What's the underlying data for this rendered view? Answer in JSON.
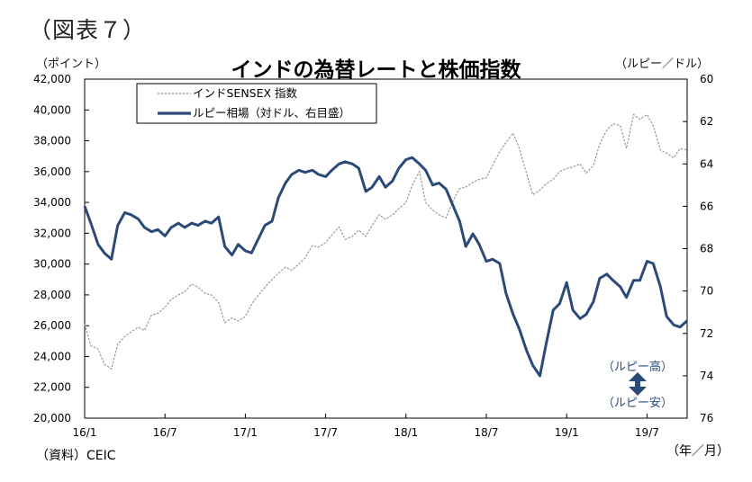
{
  "header": {
    "figure_label": "（図表７）",
    "title": "インドの為替レートと株価指数",
    "left_unit": "（ポイント）",
    "right_unit": "（ルピー／ドル）"
  },
  "footer": {
    "source": "（資料）CEIC",
    "period_unit": "（年／月）"
  },
  "chart_data": {
    "type": "line",
    "title": "インドの為替レートと株価指数",
    "x_ticks": [
      "16/1",
      "16/7",
      "17/1",
      "17/7",
      "18/1",
      "18/7",
      "19/1",
      "19/7"
    ],
    "xlim": [
      "2016-01",
      "2019-10"
    ],
    "y_left": {
      "label": "（ポイント）",
      "lim": [
        20000,
        42000
      ],
      "ticks": [
        "20,000",
        "22,000",
        "24,000",
        "26,000",
        "28,000",
        "30,000",
        "32,000",
        "34,000",
        "36,000",
        "38,000",
        "40,000",
        "42,000"
      ]
    },
    "y_right": {
      "label": "（ルピー／ドル）",
      "lim": [
        60,
        76
      ],
      "inverted": true,
      "ticks": [
        "60",
        "62",
        "64",
        "66",
        "68",
        "70",
        "72",
        "74",
        "76"
      ]
    },
    "grid": false,
    "legend_position": "top-left",
    "colors": {
      "rupee": "#2b4a78",
      "sensex": "#999999",
      "arrow": "#2b4a78",
      "annotation": "#2b4a78"
    },
    "series": [
      {
        "name": "インドSENSEX 指数",
        "axis": "left",
        "style": "dashed",
        "points": [
          [
            "2016-01-01",
            26100
          ],
          [
            "2016-01-15",
            24700
          ],
          [
            "2016-02-01",
            24500
          ],
          [
            "2016-02-15",
            23500
          ],
          [
            "2016-03-01",
            23200
          ],
          [
            "2016-03-15",
            24800
          ],
          [
            "2016-04-01",
            25300
          ],
          [
            "2016-04-15",
            25600
          ],
          [
            "2016-05-01",
            25900
          ],
          [
            "2016-05-15",
            25700
          ],
          [
            "2016-06-01",
            26700
          ],
          [
            "2016-06-15",
            26800
          ],
          [
            "2016-07-01",
            27200
          ],
          [
            "2016-07-15",
            27700
          ],
          [
            "2016-08-01",
            28000
          ],
          [
            "2016-08-15",
            28200
          ],
          [
            "2016-09-01",
            28700
          ],
          [
            "2016-09-15",
            28500
          ],
          [
            "2016-10-01",
            28100
          ],
          [
            "2016-10-15",
            28000
          ],
          [
            "2016-11-01",
            27500
          ],
          [
            "2016-11-15",
            26200
          ],
          [
            "2016-12-01",
            26500
          ],
          [
            "2016-12-15",
            26300
          ],
          [
            "2017-01-01",
            26600
          ],
          [
            "2017-01-15",
            27400
          ],
          [
            "2017-02-01",
            28000
          ],
          [
            "2017-02-15",
            28500
          ],
          [
            "2017-03-01",
            29000
          ],
          [
            "2017-03-15",
            29400
          ],
          [
            "2017-04-01",
            29800
          ],
          [
            "2017-04-15",
            29600
          ],
          [
            "2017-05-01",
            30000
          ],
          [
            "2017-05-15",
            30400
          ],
          [
            "2017-06-01",
            31200
          ],
          [
            "2017-06-15",
            31100
          ],
          [
            "2017-07-01",
            31400
          ],
          [
            "2017-07-15",
            31900
          ],
          [
            "2017-08-01",
            32400
          ],
          [
            "2017-08-15",
            31600
          ],
          [
            "2017-09-01",
            31800
          ],
          [
            "2017-09-15",
            32200
          ],
          [
            "2017-10-01",
            31800
          ],
          [
            "2017-10-15",
            32500
          ],
          [
            "2017-11-01",
            33200
          ],
          [
            "2017-11-15",
            32900
          ],
          [
            "2017-12-01",
            33200
          ],
          [
            "2017-12-15",
            33600
          ],
          [
            "2018-01-01",
            34000
          ],
          [
            "2018-01-15",
            35100
          ],
          [
            "2018-02-01",
            36000
          ],
          [
            "2018-02-15",
            34000
          ],
          [
            "2018-03-01",
            33500
          ],
          [
            "2018-03-15",
            33200
          ],
          [
            "2018-04-01",
            33000
          ],
          [
            "2018-04-15",
            34000
          ],
          [
            "2018-05-01",
            34900
          ],
          [
            "2018-05-15",
            35000
          ],
          [
            "2018-06-01",
            35300
          ],
          [
            "2018-06-15",
            35500
          ],
          [
            "2018-07-01",
            35600
          ],
          [
            "2018-07-15",
            36400
          ],
          [
            "2018-08-01",
            37300
          ],
          [
            "2018-08-15",
            37900
          ],
          [
            "2018-09-01",
            38500
          ],
          [
            "2018-09-15",
            37500
          ],
          [
            "2018-10-01",
            35900
          ],
          [
            "2018-10-15",
            34500
          ],
          [
            "2018-11-01",
            34800
          ],
          [
            "2018-11-15",
            35200
          ],
          [
            "2018-12-01",
            35500
          ],
          [
            "2018-12-15",
            36000
          ],
          [
            "2019-01-01",
            36200
          ],
          [
            "2019-01-15",
            36300
          ],
          [
            "2019-02-01",
            36500
          ],
          [
            "2019-02-15",
            35900
          ],
          [
            "2019-03-01",
            36400
          ],
          [
            "2019-03-15",
            37800
          ],
          [
            "2019-04-01",
            38700
          ],
          [
            "2019-04-15",
            39100
          ],
          [
            "2019-05-01",
            39000
          ],
          [
            "2019-05-15",
            37500
          ],
          [
            "2019-06-01",
            39700
          ],
          [
            "2019-06-15",
            39400
          ],
          [
            "2019-07-01",
            39700
          ],
          [
            "2019-07-15",
            39000
          ],
          [
            "2019-08-01",
            37400
          ],
          [
            "2019-08-15",
            37200
          ],
          [
            "2019-09-01",
            36900
          ],
          [
            "2019-09-15",
            37500
          ],
          [
            "2019-10-01",
            37400
          ]
        ]
      },
      {
        "name": "ルピー相場（対ドル、右目盛）",
        "axis": "right",
        "style": "solid",
        "points": [
          [
            "2016-01-01",
            66.0
          ],
          [
            "2016-01-15",
            66.8
          ],
          [
            "2016-02-01",
            67.8
          ],
          [
            "2016-02-15",
            68.2
          ],
          [
            "2016-03-01",
            68.5
          ],
          [
            "2016-03-15",
            66.9
          ],
          [
            "2016-04-01",
            66.3
          ],
          [
            "2016-04-15",
            66.4
          ],
          [
            "2016-05-01",
            66.6
          ],
          [
            "2016-05-15",
            67.0
          ],
          [
            "2016-06-01",
            67.2
          ],
          [
            "2016-06-15",
            67.1
          ],
          [
            "2016-07-01",
            67.4
          ],
          [
            "2016-07-15",
            67.0
          ],
          [
            "2016-08-01",
            66.8
          ],
          [
            "2016-08-15",
            67.0
          ],
          [
            "2016-09-01",
            66.8
          ],
          [
            "2016-09-15",
            66.9
          ],
          [
            "2016-10-01",
            66.7
          ],
          [
            "2016-10-15",
            66.8
          ],
          [
            "2016-11-01",
            66.5
          ],
          [
            "2016-11-15",
            67.9
          ],
          [
            "2016-12-01",
            68.3
          ],
          [
            "2016-12-15",
            67.8
          ],
          [
            "2017-01-01",
            68.1
          ],
          [
            "2017-01-15",
            68.2
          ],
          [
            "2017-02-01",
            67.5
          ],
          [
            "2017-02-15",
            66.9
          ],
          [
            "2017-03-01",
            66.7
          ],
          [
            "2017-03-15",
            65.6
          ],
          [
            "2017-04-01",
            64.9
          ],
          [
            "2017-04-15",
            64.5
          ],
          [
            "2017-05-01",
            64.3
          ],
          [
            "2017-05-15",
            64.4
          ],
          [
            "2017-06-01",
            64.3
          ],
          [
            "2017-06-15",
            64.5
          ],
          [
            "2017-07-01",
            64.6
          ],
          [
            "2017-07-15",
            64.3
          ],
          [
            "2017-08-01",
            64.0
          ],
          [
            "2017-08-15",
            63.9
          ],
          [
            "2017-09-01",
            64.0
          ],
          [
            "2017-09-15",
            64.2
          ],
          [
            "2017-10-01",
            65.3
          ],
          [
            "2017-10-15",
            65.1
          ],
          [
            "2017-11-01",
            64.6
          ],
          [
            "2017-11-15",
            65.1
          ],
          [
            "2017-12-01",
            64.8
          ],
          [
            "2017-12-15",
            64.2
          ],
          [
            "2018-01-01",
            63.8
          ],
          [
            "2018-01-15",
            63.7
          ],
          [
            "2018-02-01",
            64.0
          ],
          [
            "2018-02-15",
            64.3
          ],
          [
            "2018-03-01",
            65.0
          ],
          [
            "2018-03-15",
            64.9
          ],
          [
            "2018-04-01",
            65.2
          ],
          [
            "2018-04-15",
            65.9
          ],
          [
            "2018-05-01",
            66.7
          ],
          [
            "2018-05-15",
            67.9
          ],
          [
            "2018-06-01",
            67.3
          ],
          [
            "2018-06-15",
            67.8
          ],
          [
            "2018-07-01",
            68.6
          ],
          [
            "2018-07-15",
            68.5
          ],
          [
            "2018-08-01",
            68.7
          ],
          [
            "2018-08-15",
            70.1
          ],
          [
            "2018-09-01",
            71.1
          ],
          [
            "2018-09-15",
            71.8
          ],
          [
            "2018-10-01",
            72.8
          ],
          [
            "2018-10-15",
            73.5
          ],
          [
            "2018-11-01",
            74.0
          ],
          [
            "2018-11-15",
            72.5
          ],
          [
            "2018-12-01",
            70.9
          ],
          [
            "2018-12-15",
            70.6
          ],
          [
            "2019-01-01",
            69.6
          ],
          [
            "2019-01-15",
            70.9
          ],
          [
            "2019-02-01",
            71.3
          ],
          [
            "2019-02-15",
            71.1
          ],
          [
            "2019-03-01",
            70.5
          ],
          [
            "2019-03-15",
            69.4
          ],
          [
            "2019-04-01",
            69.2
          ],
          [
            "2019-04-15",
            69.5
          ],
          [
            "2019-05-01",
            69.8
          ],
          [
            "2019-05-15",
            70.3
          ],
          [
            "2019-06-01",
            69.5
          ],
          [
            "2019-06-15",
            69.5
          ],
          [
            "2019-07-01",
            68.6
          ],
          [
            "2019-07-15",
            68.7
          ],
          [
            "2019-08-01",
            69.8
          ],
          [
            "2019-08-15",
            71.2
          ],
          [
            "2019-09-01",
            71.6
          ],
          [
            "2019-09-15",
            71.7
          ],
          [
            "2019-10-01",
            71.4
          ]
        ]
      }
    ],
    "annotations": {
      "up": "（ルピー高）",
      "down": "（ルピー安）"
    }
  }
}
